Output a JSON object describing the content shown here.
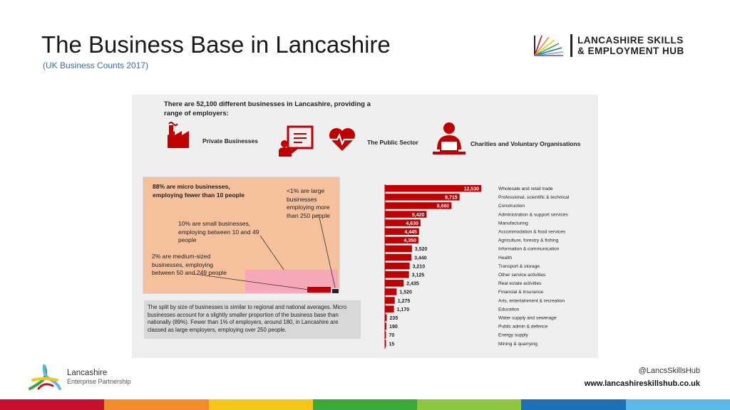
{
  "header": {
    "title": "The Business Base in Lancashire",
    "subtitle": "(UK Business Counts 2017)"
  },
  "brand": {
    "line1": "LANCASHIRE SKILLS",
    "line2": "& EMPLOYMENT HUB"
  },
  "infographic": {
    "intro": "There are 52,100 different businesses in Lancashire, providing a range of employers:",
    "categories": {
      "private": "Private Businesses",
      "public": "The Public Sector",
      "charities": "Charities and Voluntary Organisations"
    },
    "size": {
      "micro": "88% are micro businesses, employing fewer than 10 people",
      "large": "<1% are large businesses employing more than 250 people",
      "small": "10% are small businesses, employing between 10 and 49 people",
      "medium": "2% are medium-sized businesses, employing between 50 and 249 people",
      "shares": {
        "micro": 88,
        "small": 10,
        "medium": 2,
        "large": 1
      }
    },
    "note": "The split by size of businesses is similar to regional and national averages. Micro businesses account for a slightly smaller proportion of the business base than nationally (89%). Fewer than 1% of employers, around 180, in Lancashire are classed as large employers, employing over 250 people."
  },
  "chart_data": {
    "type": "bar",
    "orientation": "horizontal",
    "title": "",
    "xlabel": "",
    "ylabel": "",
    "xlim": [
      0,
      12530
    ],
    "categories": [
      "Wholesale and retail trade",
      "Professional, scientific & technical",
      "Construction",
      "Administration & support services",
      "Manufacturing",
      "Accommodation & food services",
      "Agriculture, forestry & fishing",
      "Information & communication",
      "Health",
      "Transport & storage",
      "Other service activities",
      "Real estate activities",
      "Financial & insurance",
      "Arts, entertainment & recreation",
      "Education",
      "Water supply and sewerage",
      "Public admin & defence",
      "Energy supply",
      "Mining & quarrying"
    ],
    "values": [
      12530,
      9715,
      8660,
      5420,
      4630,
      4445,
      4350,
      3520,
      3440,
      3210,
      3125,
      2435,
      1520,
      1275,
      1170,
      235,
      190,
      70,
      15
    ],
    "value_labels": [
      "12,530",
      "9,715",
      "8,660",
      "5,420",
      "4,630",
      "4,445",
      "4,350",
      "3,520",
      "3,440",
      "3,210",
      "3,125",
      "2,435",
      "1,520",
      "1,275",
      "1,170",
      "235",
      "190",
      "70",
      "15"
    ],
    "bar_color": "#c00000"
  },
  "footer": {
    "lep_line1": "Lancashire",
    "lep_line2": "Enterprise Partnership",
    "handle": "@LancsSkillsHub",
    "website": "www.lancashireskillshub.co.uk",
    "stripe_colors": [
      "#c8102e",
      "#f28c28",
      "#f5c518",
      "#3aaa35",
      "#8dc63f",
      "#1f6fb5",
      "#5bb8e8"
    ]
  }
}
